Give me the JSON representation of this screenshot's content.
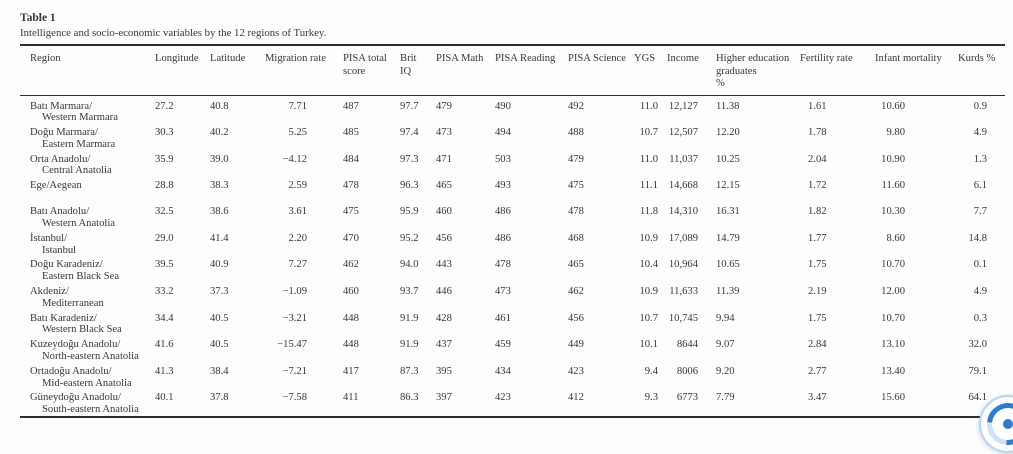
{
  "table": {
    "title": "Table 1",
    "caption": "Intelligence and socio-economic variables by the 12 regions of Turkey.",
    "columns": [
      {
        "label": "Region"
      },
      {
        "label": "Longitude"
      },
      {
        "label": "Latitude"
      },
      {
        "label": "Migration rate"
      },
      {
        "label": "PISA total\nscore"
      },
      {
        "label": "Brit\nIQ"
      },
      {
        "label": "PISA Math"
      },
      {
        "label": "PISA Reading"
      },
      {
        "label": "PISA Science"
      },
      {
        "label": "YGS"
      },
      {
        "label": "Income"
      },
      {
        "label": "Higher education\ngraduates\n%"
      },
      {
        "label": "Fertility rate"
      },
      {
        "label": "Infant mortality"
      },
      {
        "label": "Kurds %"
      }
    ],
    "rows": [
      {
        "region_local": "Batı Marmara/",
        "region_english": "Western Marmara",
        "values": [
          "27.2",
          "40.8",
          "7.71",
          "487",
          "97.7",
          "479",
          "490",
          "492",
          "11.0",
          "12,127",
          "11.38",
          "1.61",
          "10.60",
          "0.9"
        ]
      },
      {
        "region_local": "Doğu Marmara/",
        "region_english": "Eastern Marmara",
        "values": [
          "30.3",
          "40.2",
          "5.25",
          "485",
          "97.4",
          "473",
          "494",
          "488",
          "10.7",
          "12,507",
          "12.20",
          "1.78",
          "9.80",
          "4.9"
        ]
      },
      {
        "region_local": "Orta Anadolu/",
        "region_english": "Central Anatolia",
        "values": [
          "35.9",
          "39.0",
          "−4.12",
          "484",
          "97.3",
          "471",
          "503",
          "479",
          "11.0",
          "11,037",
          "10.25",
          "2.04",
          "10.90",
          "1.3"
        ]
      },
      {
        "region_local": "Ege/Aegean",
        "region_english": "",
        "values": [
          "28.8",
          "38.3",
          "2.59",
          "478",
          "96.3",
          "465",
          "493",
          "475",
          "11.1",
          "14,668",
          "12.15",
          "1.72",
          "11.60",
          "6.1"
        ]
      },
      {
        "region_local": "Batı Anadolu/",
        "region_english": "Western Anatolia",
        "values": [
          "32.5",
          "38.6",
          "3.61",
          "475",
          "95.9",
          "460",
          "486",
          "478",
          "11.8",
          "14,310",
          "16.31",
          "1.82",
          "10.30",
          "7.7"
        ]
      },
      {
        "region_local": "İstanbul/",
        "region_english": "Istanbul",
        "values": [
          "29.0",
          "41.4",
          "2.20",
          "470",
          "95.2",
          "456",
          "486",
          "468",
          "10.9",
          "17,089",
          "14.79",
          "1.77",
          "8.60",
          "14.8"
        ]
      },
      {
        "region_local": "Doğu Karadeniz/",
        "region_english": "Eastern Black Sea",
        "values": [
          "39.5",
          "40.9",
          "7.27",
          "462",
          "94.0",
          "443",
          "478",
          "465",
          "10.4",
          "10,964",
          "10.65",
          "1.75",
          "10.70",
          "0.1"
        ]
      },
      {
        "region_local": "Akdeniz/",
        "region_english": "Mediterranean",
        "values": [
          "33.2",
          "37.3",
          "−1.09",
          "460",
          "93.7",
          "446",
          "473",
          "462",
          "10.9",
          "11,633",
          "11.39",
          "2.19",
          "12.00",
          "4.9"
        ]
      },
      {
        "region_local": "Batı Karadeniz/",
        "region_english": "Western Black Sea",
        "values": [
          "34.4",
          "40.5",
          "−3.21",
          "448",
          "91.9",
          "428",
          "461",
          "456",
          "10.7",
          "10,745",
          "9.94",
          "1.75",
          "10.70",
          "0.3"
        ]
      },
      {
        "region_local": "Kuzeydoğu Anadolu/",
        "region_english": "North-eastern Anatolia",
        "values": [
          "41.6",
          "40.5",
          "−15.47",
          "448",
          "91.9",
          "437",
          "459",
          "449",
          "10.1",
          "8644",
          "9.07",
          "2.84",
          "13.10",
          "32.0"
        ]
      },
      {
        "region_local": "Ortadoğu Anadolu/",
        "region_english": "Mid-eastern Anatolia",
        "values": [
          "41.3",
          "38.4",
          "−7.21",
          "417",
          "87.3",
          "395",
          "434",
          "423",
          "9.4",
          "8006",
          "9.20",
          "2.77",
          "13.40",
          "79.1"
        ]
      },
      {
        "region_local": "Güneydoğu Anadolu/",
        "region_english": "South-eastern Anatolia",
        "values": [
          "40.1",
          "37.8",
          "−7.58",
          "411",
          "86.3",
          "397",
          "423",
          "412",
          "9.3",
          "6773",
          "7.79",
          "3.47",
          "15.60",
          "64.1"
        ]
      }
    ]
  },
  "widget": {
    "icon": "circular-blue-progress-widget",
    "accent_color": "#2e7cd0",
    "ring_color": "#b9d4f0"
  }
}
